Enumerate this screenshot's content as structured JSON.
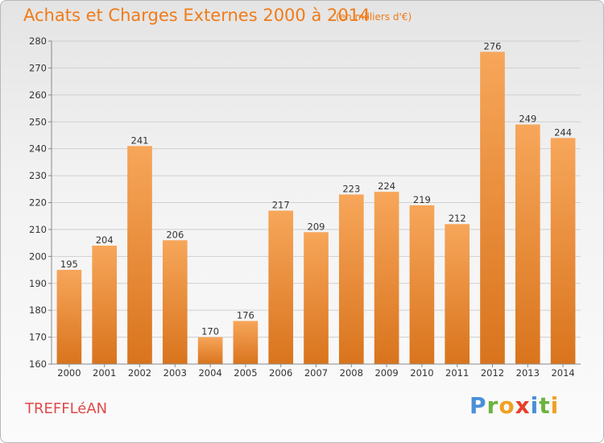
{
  "header": {
    "title": "Achats et Charges Externes 2000 à 2014",
    "subtitle": "(en milliers d'€)"
  },
  "footer": {
    "commune": "TREFFLéAN",
    "logo": [
      "P",
      "r",
      "o",
      "x",
      "i",
      "t",
      "i"
    ]
  },
  "colors": {
    "title": "#f07b18",
    "commune": "#e04a4a",
    "bar_top": "#f7a65a",
    "bar_bottom": "#d9741d",
    "logo": [
      "#4a8fd8",
      "#6cb33f",
      "#f0a020",
      "#e8402a",
      "#4a8fd8",
      "#6cb33f",
      "#f0a020"
    ]
  },
  "chart_data": {
    "type": "bar",
    "categories": [
      "2000",
      "2001",
      "2002",
      "2003",
      "2004",
      "2005",
      "2006",
      "2007",
      "2008",
      "2009",
      "2010",
      "2011",
      "2012",
      "2013",
      "2014"
    ],
    "values": [
      195,
      204,
      241,
      206,
      170,
      176,
      217,
      209,
      223,
      224,
      219,
      212,
      276,
      249,
      244
    ],
    "ylim": [
      160,
      280
    ],
    "yticks": [
      160,
      170,
      180,
      190,
      200,
      210,
      220,
      230,
      240,
      250,
      260,
      270,
      280
    ],
    "grid": true,
    "data_labels": true
  }
}
